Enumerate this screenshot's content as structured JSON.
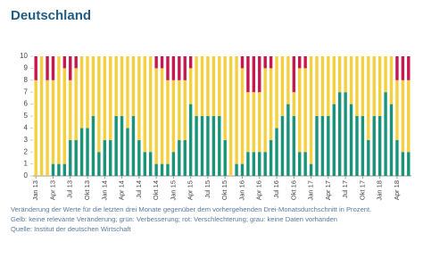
{
  "chart_data": {
    "type": "stacked-bar",
    "title": "Deutschland",
    "categories": [
      "Jan 13",
      null,
      null,
      "Apr 13",
      null,
      null,
      "Jul 13",
      null,
      null,
      "Okt 13",
      null,
      null,
      "Jan 14",
      null,
      null,
      "Apr 14",
      null,
      null,
      "Jul 14",
      null,
      null,
      "Okt 14",
      null,
      null,
      "Jan 15",
      null,
      null,
      "Apr 15",
      null,
      null,
      "Jul 15",
      null,
      null,
      "Okt 15",
      null,
      null,
      "Jan 16",
      null,
      null,
      "Apr 16",
      null,
      null,
      "Jul 16",
      null,
      null,
      "Okt 16",
      null,
      null,
      "Jan 17",
      null,
      null,
      "Apr 17",
      null,
      null,
      "Jul 17",
      null,
      null,
      "Okt 17",
      null,
      null,
      "Jan 18",
      null,
      null,
      "Apr 18",
      null,
      null
    ],
    "series": [
      {
        "color": "#1a9479",
        "values": [
          0,
          0,
          0,
          1,
          1,
          1,
          3,
          3,
          4,
          4,
          5,
          2,
          3,
          3,
          5,
          5,
          4,
          5,
          3,
          2,
          2,
          1,
          1,
          1,
          2,
          3,
          3,
          6,
          5,
          5,
          5,
          5,
          5,
          3,
          0,
          1,
          1,
          2,
          2,
          2,
          2,
          3,
          4,
          5,
          6,
          5,
          2,
          2,
          1,
          5,
          5,
          5,
          6,
          7,
          7,
          6,
          5,
          5,
          3,
          5,
          5,
          7,
          6,
          3,
          2,
          2
        ]
      },
      {
        "color": "#f4d03f",
        "values": [
          8,
          10,
          8,
          7,
          9,
          8,
          5,
          6,
          6,
          6,
          5,
          8,
          7,
          7,
          5,
          5,
          6,
          5,
          7,
          8,
          8,
          8,
          8,
          7,
          6,
          5,
          5,
          3,
          5,
          5,
          5,
          5,
          5,
          7,
          10,
          9,
          8,
          5,
          5,
          5,
          7,
          6,
          6,
          5,
          4,
          2,
          7,
          7,
          9,
          5,
          5,
          5,
          4,
          3,
          3,
          4,
          5,
          5,
          7,
          5,
          5,
          3,
          4,
          5,
          6,
          6
        ]
      },
      {
        "color": "#c8174f",
        "values": [
          2,
          0,
          2,
          2,
          0,
          1,
          2,
          1,
          0,
          0,
          0,
          0,
          0,
          0,
          0,
          0,
          0,
          0,
          0,
          0,
          0,
          1,
          1,
          2,
          2,
          2,
          2,
          1,
          0,
          0,
          0,
          0,
          0,
          0,
          0,
          0,
          1,
          3,
          3,
          3,
          1,
          1,
          0,
          0,
          0,
          3,
          1,
          1,
          0,
          0,
          0,
          0,
          0,
          0,
          0,
          0,
          0,
          0,
          0,
          0,
          0,
          0,
          0,
          2,
          2,
          2
        ]
      }
    ],
    "ylim": [
      0,
      10
    ],
    "yticks": [
      0,
      1,
      2,
      3,
      4,
      5,
      6,
      7,
      8,
      9,
      10
    ],
    "grid": false,
    "notes": [
      "Veränderung der Werte für die letzten drei Monate gegenüber dem vorhergehenden Drei-Monatsdurchschnitt in Prozent.",
      "Gelb: keine relevante Veränderung; grün: Verbesserung; rot: Verschlechterung; grau: keine Daten vorhanden",
      "Quelle: Institut der deutschen Wirtschaft"
    ]
  }
}
